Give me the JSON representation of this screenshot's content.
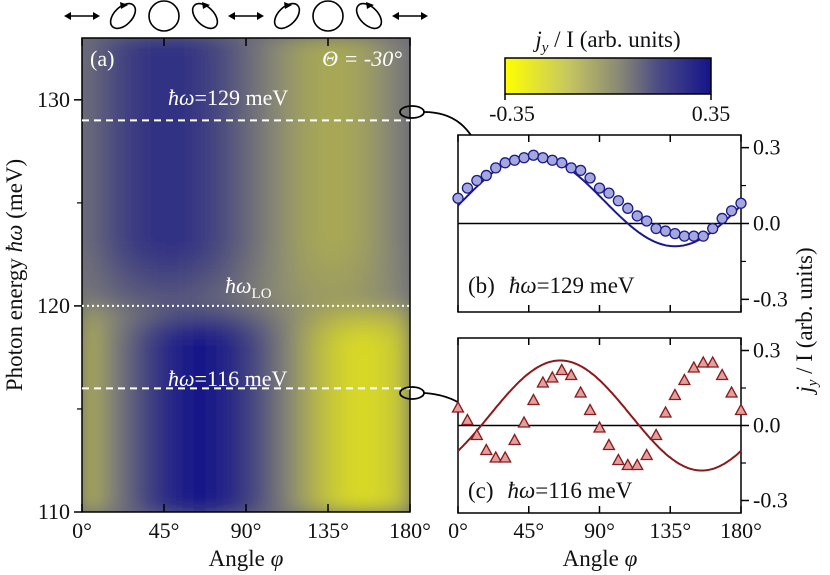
{
  "heatmap": {
    "panel_label": "(a)",
    "theta_label": "Θ = -30°",
    "hw129_prefix": "ħω",
    "hw129_label": "=129 meV",
    "hw116_prefix": "ħω",
    "hw116_label": "=116 meV",
    "hwlo_main": "ħω",
    "hwlo_sub": "LO",
    "ylabel_prefix": "Photon energy ",
    "ylabel_symbol": "ħω",
    "ylabel_suffix": " (meV)",
    "xlabel_prefix": "Angle ",
    "xlabel_symbol": "φ",
    "x_ticks": [
      "0°",
      "45°",
      "90°",
      "135°",
      "180°"
    ],
    "y_ticks": [
      "110",
      "120",
      "130"
    ]
  },
  "colorbar": {
    "title_symbol": "j",
    "title_sub": "y",
    "title_rest": " / I (arb. units)",
    "min_label": "-0.35",
    "max_label": "0.35",
    "low_color": "#ffff00",
    "mid_color": "#8a8a74",
    "high_color": "#14148a"
  },
  "panel_b": {
    "label_prefix": "(b)",
    "label_symbol": "ħω",
    "label_text": "=129 meV",
    "y_ticks": [
      "0.3",
      "0.0",
      "-0.3"
    ],
    "color": "#1a1a8c",
    "marker_fill": "#a4a8dc"
  },
  "panel_c": {
    "label_prefix": "(c)",
    "label_symbol": "ħω",
    "label_text": "=116 meV",
    "y_ticks": [
      "0.3",
      "0.0",
      "-0.3"
    ],
    "x_ticks": [
      "0°",
      "45°",
      "90°",
      "135°",
      "180°"
    ],
    "xlabel_prefix": "Angle ",
    "xlabel_symbol": "φ",
    "color": "#8b1a1a",
    "marker_fill": "#e0a0a0"
  },
  "right_ylabel": {
    "symbol": "j",
    "sub": "y",
    "rest": " / I (arb. units)"
  },
  "chart_data": [
    {
      "type": "heatmap",
      "x_range": [
        0,
        180
      ],
      "y_range": [
        110,
        133
      ],
      "colorscale_range": [
        -0.35,
        0.35
      ],
      "reference_lines": [
        129,
        120,
        116
      ]
    },
    {
      "type": "scatter",
      "panel": "b",
      "x_range": [
        0,
        180
      ],
      "y_range": [
        -0.35,
        0.35
      ],
      "x": [
        0,
        6,
        12,
        18,
        24,
        30,
        36,
        42,
        48,
        54,
        60,
        66,
        72,
        78,
        84,
        90,
        96,
        102,
        108,
        114,
        120,
        126,
        132,
        138,
        144,
        150,
        156,
        162,
        168,
        174,
        180
      ],
      "y": [
        0.1,
        0.14,
        0.17,
        0.19,
        0.22,
        0.24,
        0.25,
        0.26,
        0.27,
        0.26,
        0.25,
        0.24,
        0.22,
        0.21,
        0.18,
        0.14,
        0.12,
        0.09,
        0.06,
        0.03,
        0.01,
        -0.02,
        -0.03,
        -0.04,
        -0.05,
        -0.05,
        -0.05,
        -0.02,
        0.02,
        0.05,
        0.08
      ],
      "fit_offset": 0.09,
      "fit_amplitude": 0.18,
      "fit_phase_deg": 48
    },
    {
      "type": "scatter",
      "panel": "c",
      "x_range": [
        0,
        180
      ],
      "y_range": [
        -0.35,
        0.35
      ],
      "x": [
        0,
        6,
        12,
        18,
        24,
        30,
        36,
        42,
        48,
        54,
        60,
        66,
        72,
        78,
        84,
        90,
        96,
        102,
        108,
        114,
        120,
        126,
        132,
        138,
        144,
        150,
        156,
        162,
        168,
        174,
        180
      ],
      "y": [
        0.07,
        0.02,
        -0.04,
        -0.1,
        -0.13,
        -0.13,
        -0.06,
        0.01,
        0.1,
        0.17,
        0.19,
        0.22,
        0.2,
        0.13,
        0.06,
        -0.01,
        -0.08,
        -0.14,
        -0.16,
        -0.16,
        -0.12,
        -0.04,
        0.05,
        0.12,
        0.18,
        0.23,
        0.25,
        0.25,
        0.2,
        0.13,
        0.06
      ],
      "fit_offset": 0.04,
      "fit_amplitude": 0.22,
      "fit_phase_deg": 65
    }
  ]
}
